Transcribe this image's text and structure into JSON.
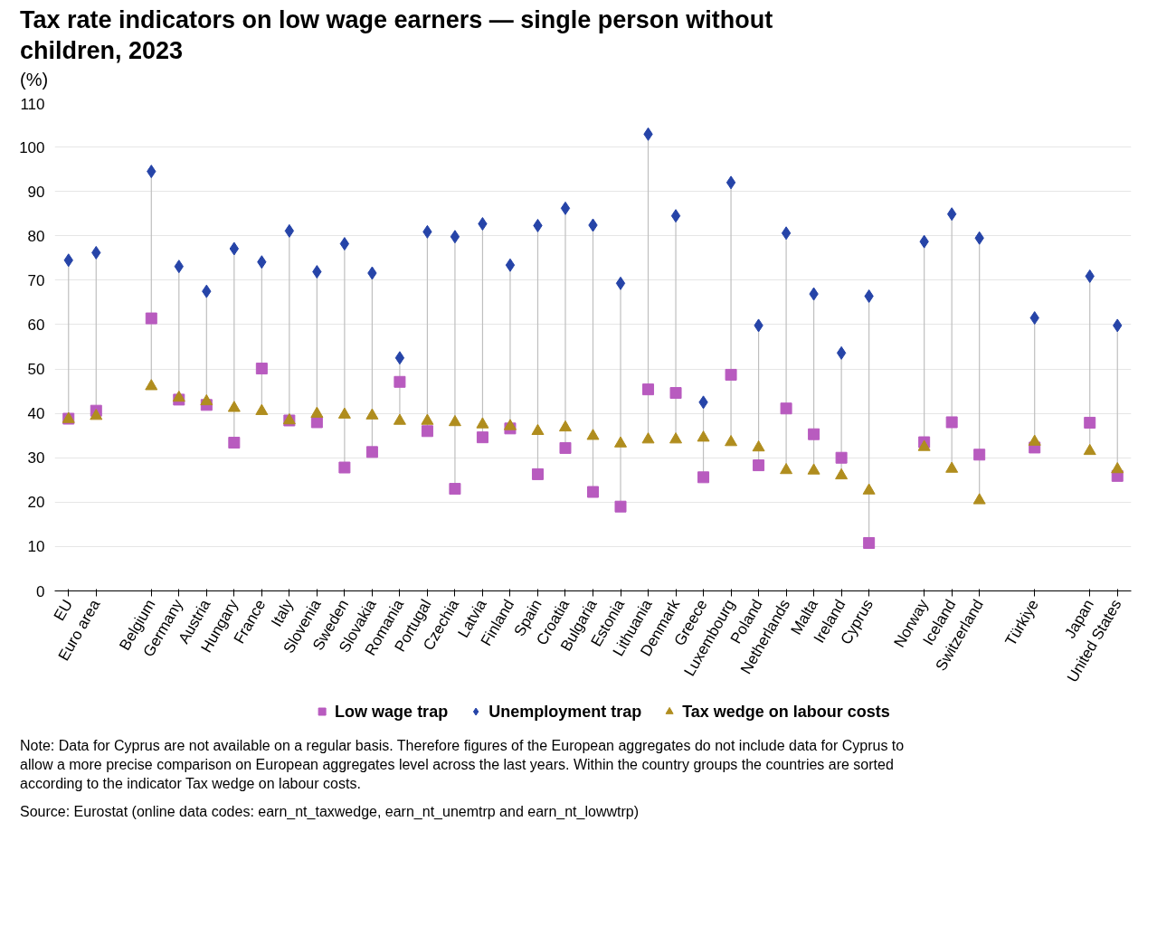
{
  "chart_data": {
    "type": "scatter",
    "title": "Tax rate indicators on low wage earners — single person without children, 2023",
    "ylabel": "(%)",
    "categories": [
      "EU",
      "Euro area",
      null,
      "Belgium",
      "Germany",
      "Austria",
      "Hungary",
      "France",
      "Italy",
      "Slovenia",
      "Sweden",
      "Slovakia",
      "Romania",
      "Portugal",
      "Czechia",
      "Latvia",
      "Finland",
      "Spain",
      "Croatia",
      "Bulgaria",
      "Estonia",
      "Lithuania",
      "Denmark",
      "Greece",
      "Luxembourg",
      "Poland",
      "Netherlands",
      "Malta",
      "Ireland",
      "Cyprus",
      null,
      "Norway",
      "Iceland",
      "Switzerland",
      null,
      "Türkiye",
      null,
      "Japan",
      "United States"
    ],
    "series": [
      {
        "name": "Low wage trap",
        "color": "#b85bbf",
        "marker": "square",
        "values": [
          38.8,
          40.6,
          null,
          61.4,
          43.1,
          41.9,
          33.4,
          50.1,
          38.4,
          38.0,
          27.8,
          31.3,
          47.1,
          36.0,
          23.0,
          34.6,
          36.6,
          26.3,
          32.2,
          22.3,
          19.0,
          45.4,
          44.6,
          25.6,
          48.7,
          28.3,
          41.1,
          35.3,
          30.0,
          10.8,
          null,
          33.5,
          38.0,
          30.7,
          null,
          32.3,
          null,
          37.9,
          25.9
        ]
      },
      {
        "name": "Unemployment trap",
        "color": "#2644a8",
        "marker": "diamond",
        "values": [
          74.5,
          76.2,
          null,
          94.5,
          73.1,
          67.5,
          77.1,
          74.1,
          81.1,
          71.9,
          78.2,
          71.6,
          52.5,
          80.9,
          79.8,
          82.7,
          73.4,
          82.3,
          86.2,
          82.4,
          69.3,
          102.9,
          84.5,
          42.5,
          92.0,
          59.8,
          80.6,
          66.9,
          53.6,
          66.4,
          null,
          78.7,
          84.9,
          79.5,
          null,
          61.5,
          null,
          70.9,
          59.8
        ]
      },
      {
        "name": "Tax wedge on labour costs",
        "color": "#b08d1e",
        "marker": "triangle",
        "values": [
          38.7,
          39.4,
          null,
          46.1,
          43.5,
          42.7,
          41.2,
          40.5,
          38.4,
          39.9,
          39.7,
          39.5,
          38.3,
          38.3,
          38.0,
          37.5,
          37.1,
          36.0,
          36.8,
          34.9,
          33.2,
          34.1,
          34.1,
          34.5,
          33.5,
          32.3,
          27.2,
          27.1,
          26.0,
          22.6,
          null,
          32.4,
          27.5,
          20.4,
          null,
          33.6,
          null,
          31.5,
          27.4
        ]
      }
    ],
    "ylim": [
      0,
      110
    ],
    "yticks": [
      0,
      10,
      20,
      30,
      40,
      50,
      60,
      70,
      80,
      90,
      100,
      110
    ],
    "grid": "y",
    "legend": "bottom",
    "annotations": [
      "Note: Data for Cyprus are not available on a regular basis. Therefore figures of the European aggregates do not include data for Cyprus to allow a more precise comparison on European aggregates level across the last years. Within the country groups the countries are sorted according to the indicator Tax wedge on labour costs.",
      "Source: Eurostat (online data codes: earn_nt_taxwedge, earn_nt_unemtrp and earn_nt_lowwtrp)"
    ]
  }
}
